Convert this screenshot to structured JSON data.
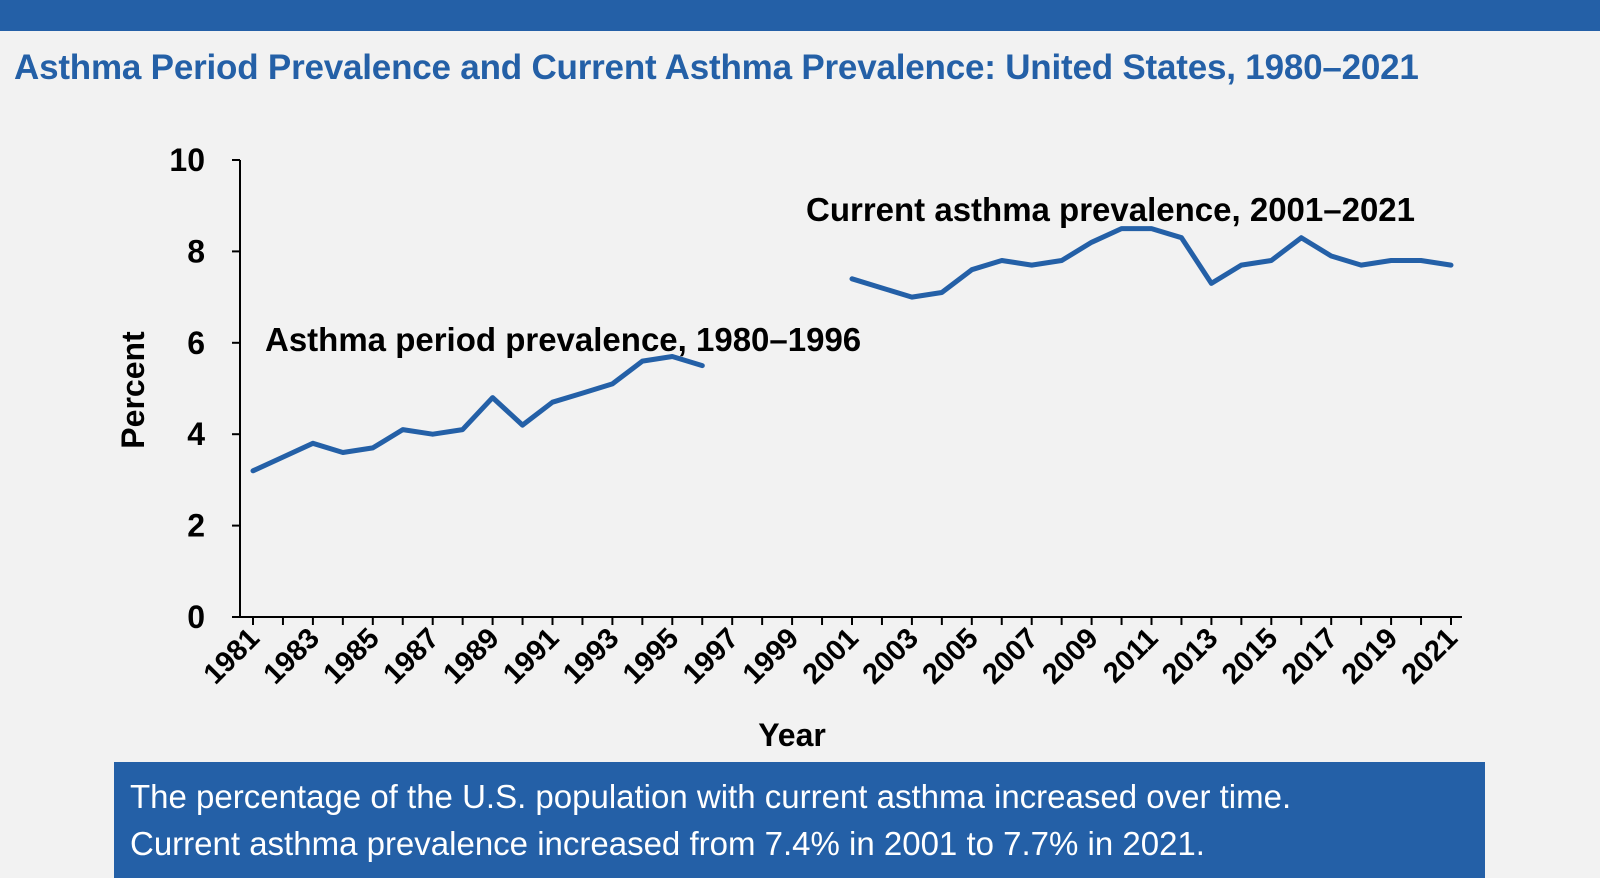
{
  "title": "Asthma Period Prevalence and Current Asthma Prevalence: United States, 1980–2021",
  "colors": {
    "brand": "#2460a7",
    "background": "#f2f2f2",
    "line": "#2460a7"
  },
  "chart_data": {
    "type": "line",
    "title": "Asthma Period Prevalence and Current Asthma Prevalence: United States, 1980–2021",
    "xlabel": "Year",
    "ylabel": "Percent",
    "xlim": [
      1981,
      2021
    ],
    "ylim": [
      0,
      10
    ],
    "y_ticks": [
      0,
      2,
      4,
      6,
      8,
      10
    ],
    "x_tick_labels": [
      "1981",
      "1983",
      "1985",
      "1987",
      "1989",
      "1991",
      "1993",
      "1995",
      "1997",
      "1999",
      "2001",
      "2003",
      "2005",
      "2007",
      "2009",
      "2011",
      "2013",
      "2015",
      "2017",
      "2019",
      "2021"
    ],
    "grid": false,
    "series": [
      {
        "name": "Asthma period prevalence, 1980–1996",
        "x": [
          1981,
          1982,
          1983,
          1984,
          1985,
          1986,
          1987,
          1988,
          1989,
          1990,
          1991,
          1992,
          1993,
          1994,
          1995,
          1996
        ],
        "values": [
          3.2,
          3.5,
          3.8,
          3.6,
          3.7,
          4.1,
          4.0,
          4.1,
          4.8,
          4.2,
          4.7,
          4.9,
          5.1,
          5.6,
          5.7,
          5.5
        ]
      },
      {
        "name": "Current asthma prevalence, 2001–2021",
        "x": [
          2001,
          2002,
          2003,
          2004,
          2005,
          2006,
          2007,
          2008,
          2009,
          2010,
          2011,
          2012,
          2013,
          2014,
          2015,
          2016,
          2017,
          2018,
          2019,
          2020,
          2021
        ],
        "values": [
          7.4,
          7.2,
          7.0,
          7.1,
          7.6,
          7.8,
          7.7,
          7.8,
          8.2,
          8.5,
          8.5,
          8.3,
          7.3,
          7.7,
          7.8,
          8.3,
          7.9,
          7.7,
          7.8,
          7.8,
          7.7
        ]
      }
    ],
    "annotations": [
      "Asthma period prevalence, 1980–1996",
      "Current asthma prevalence, 2001–2021"
    ]
  },
  "footer": {
    "line1": "The percentage of the U.S. population with current asthma increased over time.",
    "line2": "Current asthma prevalence increased from 7.4% in 2001 to 7.7% in 2021."
  }
}
